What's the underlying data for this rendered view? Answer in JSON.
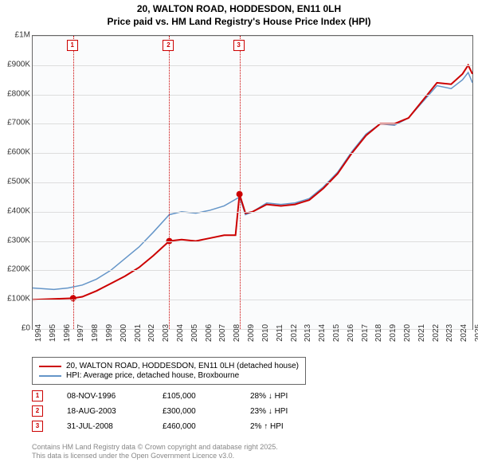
{
  "title_line1": "20, WALTON ROAD, HODDESDON, EN11 0LH",
  "title_line2": "Price paid vs. HM Land Registry's House Price Index (HPI)",
  "chart": {
    "type": "line",
    "background_color": "#fafbfc",
    "grid_color": "#dddddd",
    "border_color": "#666666",
    "x_years": [
      1994,
      1995,
      1996,
      1997,
      1998,
      1999,
      2000,
      2001,
      2002,
      2003,
      2004,
      2005,
      2006,
      2007,
      2008,
      2009,
      2010,
      2011,
      2012,
      2013,
      2014,
      2015,
      2016,
      2017,
      2018,
      2019,
      2020,
      2021,
      2022,
      2023,
      2024,
      2025
    ],
    "y_ticks": [
      "£0",
      "£100K",
      "£200K",
      "£300K",
      "£400K",
      "£500K",
      "£600K",
      "£700K",
      "£800K",
      "£900K",
      "£1M"
    ],
    "ylim": [
      0,
      1000000
    ],
    "series": [
      {
        "name": "20, WALTON ROAD, HODDESDON, EN11 0LH (detached house)",
        "color": "#cc0000",
        "width": 2,
        "points": [
          [
            1994.0,
            100000
          ],
          [
            1996.85,
            105000
          ],
          [
            1997.5,
            110000
          ],
          [
            1998.5,
            130000
          ],
          [
            1999.5,
            155000
          ],
          [
            2000.5,
            180000
          ],
          [
            2001.5,
            210000
          ],
          [
            2002.5,
            250000
          ],
          [
            2003.63,
            300000
          ],
          [
            2004.5,
            305000
          ],
          [
            2005.5,
            300000
          ],
          [
            2006.5,
            310000
          ],
          [
            2007.5,
            320000
          ],
          [
            2008.3,
            320000
          ],
          [
            2008.58,
            460000
          ],
          [
            2009.0,
            395000
          ],
          [
            2009.5,
            400000
          ],
          [
            2010.5,
            425000
          ],
          [
            2011.5,
            420000
          ],
          [
            2012.5,
            425000
          ],
          [
            2013.5,
            440000
          ],
          [
            2014.5,
            480000
          ],
          [
            2015.5,
            530000
          ],
          [
            2016.5,
            600000
          ],
          [
            2017.5,
            660000
          ],
          [
            2018.5,
            700000
          ],
          [
            2019.5,
            700000
          ],
          [
            2020.5,
            720000
          ],
          [
            2021.5,
            780000
          ],
          [
            2022.5,
            840000
          ],
          [
            2023.5,
            835000
          ],
          [
            2024.3,
            870000
          ],
          [
            2024.7,
            900000
          ],
          [
            2025.0,
            870000
          ]
        ]
      },
      {
        "name": "HPI: Average price, detached house, Broxbourne",
        "color": "#6495c8",
        "width": 1.5,
        "points": [
          [
            1994.0,
            140000
          ],
          [
            1995.5,
            135000
          ],
          [
            1996.5,
            140000
          ],
          [
            1997.5,
            150000
          ],
          [
            1998.5,
            170000
          ],
          [
            1999.5,
            200000
          ],
          [
            2000.5,
            240000
          ],
          [
            2001.5,
            280000
          ],
          [
            2002.5,
            330000
          ],
          [
            2003.63,
            390000
          ],
          [
            2004.5,
            400000
          ],
          [
            2005.5,
            395000
          ],
          [
            2006.5,
            405000
          ],
          [
            2007.5,
            420000
          ],
          [
            2008.58,
            450000
          ],
          [
            2009.0,
            390000
          ],
          [
            2009.5,
            400000
          ],
          [
            2010.5,
            430000
          ],
          [
            2011.5,
            425000
          ],
          [
            2012.5,
            430000
          ],
          [
            2013.5,
            445000
          ],
          [
            2014.5,
            485000
          ],
          [
            2015.5,
            535000
          ],
          [
            2016.5,
            605000
          ],
          [
            2017.5,
            665000
          ],
          [
            2018.5,
            700000
          ],
          [
            2019.5,
            695000
          ],
          [
            2020.5,
            720000
          ],
          [
            2021.5,
            775000
          ],
          [
            2022.5,
            830000
          ],
          [
            2023.5,
            820000
          ],
          [
            2024.3,
            850000
          ],
          [
            2024.7,
            875000
          ],
          [
            2025.0,
            840000
          ]
        ]
      }
    ],
    "sale_markers": [
      {
        "n": "1",
        "year": 1996.85,
        "price": 105000
      },
      {
        "n": "2",
        "year": 2003.63,
        "price": 300000
      },
      {
        "n": "3",
        "year": 2008.58,
        "price": 460000
      }
    ],
    "marker_color": "#cc0000",
    "marker_line_color": "#cc0000"
  },
  "legend": {
    "items": [
      {
        "label": "20, WALTON ROAD, HODDESDON, EN11 0LH (detached house)",
        "color": "#cc0000"
      },
      {
        "label": "HPI: Average price, detached house, Broxbourne",
        "color": "#6495c8"
      }
    ]
  },
  "sales_table": [
    {
      "n": "1",
      "date": "08-NOV-1996",
      "price": "£105,000",
      "pct": "28% ↓ HPI"
    },
    {
      "n": "2",
      "date": "18-AUG-2003",
      "price": "£300,000",
      "pct": "23% ↓ HPI"
    },
    {
      "n": "3",
      "date": "31-JUL-2008",
      "price": "£460,000",
      "pct": "2% ↑ HPI"
    }
  ],
  "attribution_line1": "Contains HM Land Registry data © Crown copyright and database right 2025.",
  "attribution_line2": "This data is licensed under the Open Government Licence v3.0."
}
